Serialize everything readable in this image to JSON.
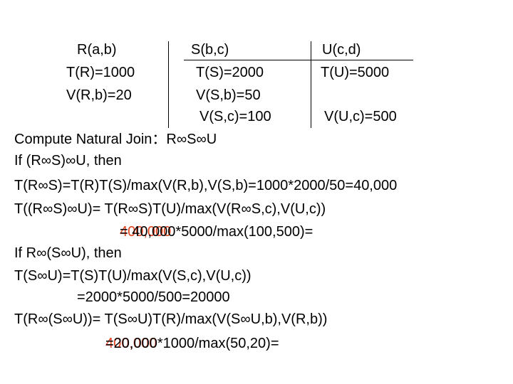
{
  "columns": [
    {
      "header": "R(a,b)",
      "items": [
        "T(R)=1000",
        "V(R,b)=20"
      ]
    },
    {
      "header": "S(b,c)",
      "items": [
        "T(S)=2000",
        "V(S,b)=50",
        "V(S,c)=100"
      ]
    },
    {
      "header": "U(c,d)",
      "items": [
        "T(U)=5000",
        "V(U,c)=500"
      ]
    }
  ],
  "lines": [
    {
      "text": "Compute Natural Join：R∞S∞U"
    },
    {
      "text": "If (R∞S)∞U,  then"
    },
    {
      "text": "T(R∞S)=T(R)T(S)/max(V(R,b),V(S,b)=1000*2000/50=40,000"
    },
    {
      "text": "T((R∞S)∞U)= T(R∞S)T(U)/max(V(R∞S,c),V(U,c))"
    },
    {
      "text": "= 40,000*5000/max(100,500)= ",
      "highlight": "400,000"
    },
    {
      "text": "If R∞(S∞U),  then"
    },
    {
      "text": "T(S∞U)=T(S)T(U)/max(V(S,c),V(U,c))"
    },
    {
      "text": "=2000*5000/500=20000"
    },
    {
      "text": "T(R∞(S∞U))= T(S∞U)T(R)/max(V(S∞U,b),V(R,b))"
    },
    {
      "text": "=20,000*1000/max(50,20)= ",
      "highlight": "400,000"
    }
  ]
}
